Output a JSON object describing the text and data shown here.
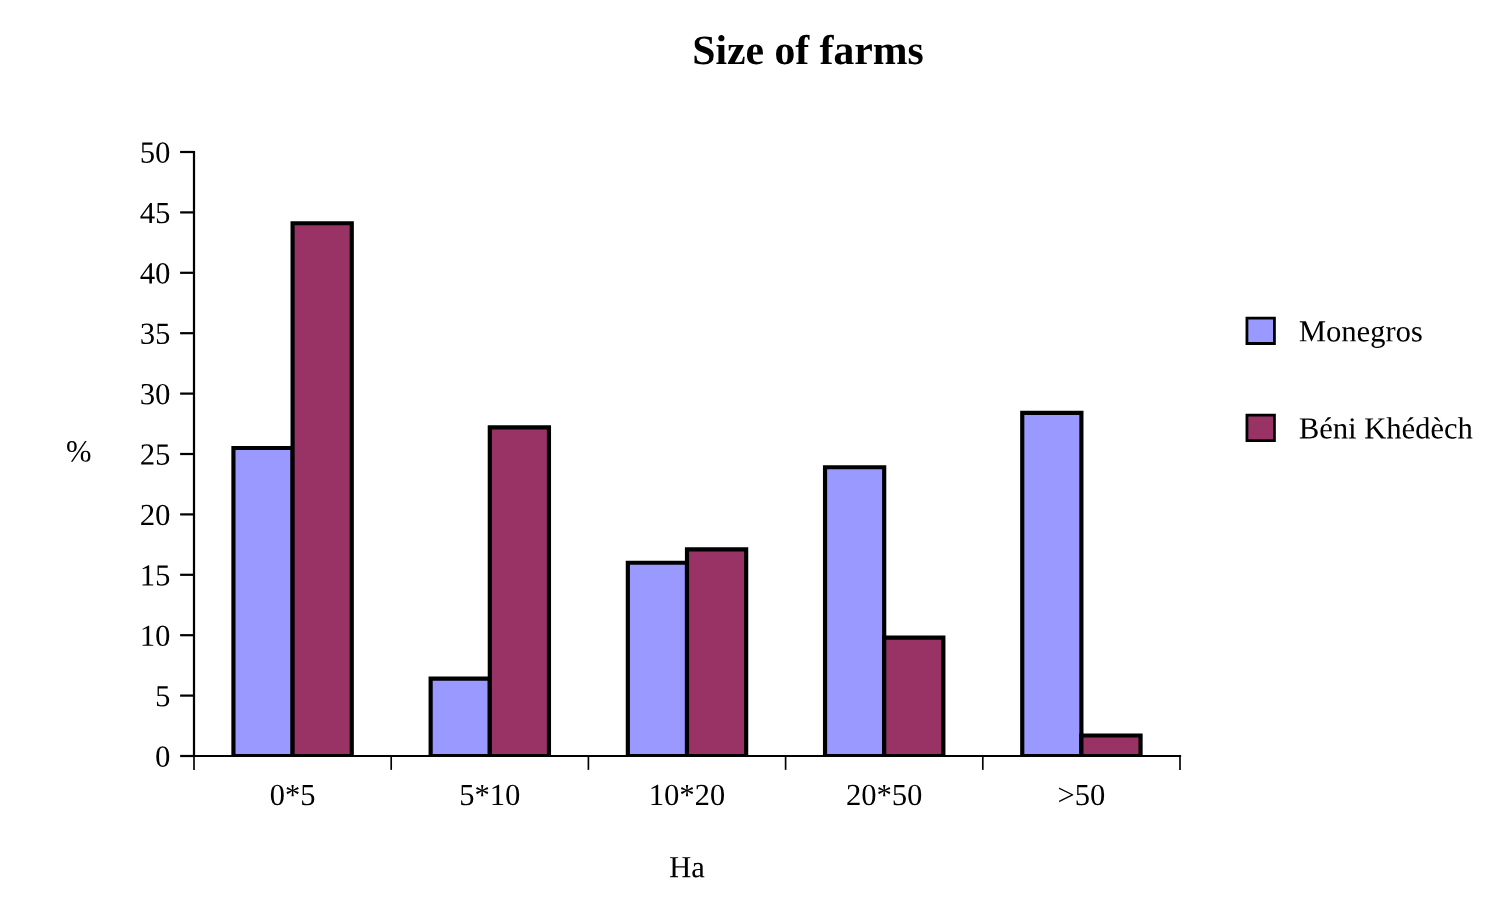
{
  "chart_data": {
    "type": "bar",
    "title": "Size of farms",
    "xlabel": "Ha",
    "ylabel": "%",
    "categories": [
      "0*5",
      "5*10",
      "10*20",
      "20*50",
      ">50"
    ],
    "series": [
      {
        "name": "Monegros",
        "color": "#9999ff",
        "values": [
          25.5,
          6.4,
          16.0,
          23.9,
          28.4
        ]
      },
      {
        "name": "Béni Khédèch",
        "color": "#993366",
        "values": [
          44.1,
          27.2,
          17.1,
          9.8,
          1.7
        ]
      }
    ],
    "ylim": [
      0,
      50
    ],
    "yticks": [
      0,
      5,
      10,
      15,
      20,
      25,
      30,
      35,
      40,
      45,
      50
    ],
    "grid": false,
    "legend": "right"
  }
}
